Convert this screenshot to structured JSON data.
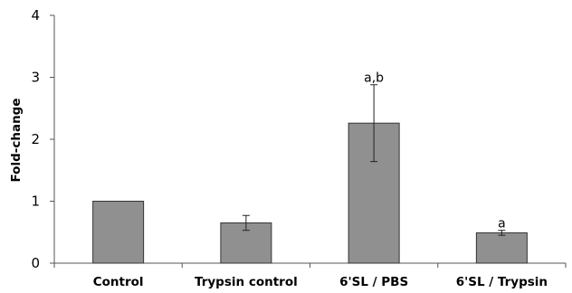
{
  "chart_data": {
    "type": "bar",
    "title": "",
    "xlabel": "",
    "ylabel": "Fold-change",
    "ylim": [
      0,
      4
    ],
    "yticks": [
      0,
      1,
      2,
      3,
      4
    ],
    "grid": false,
    "bar_color": "#909090",
    "categories": [
      "Control",
      "Trypsin control",
      "6'SL / PBS",
      "6'SL / Trypsin"
    ],
    "values": [
      1.0,
      0.65,
      2.26,
      0.49
    ],
    "errors": [
      null,
      0.12,
      0.62,
      0.04
    ],
    "annotations": [
      "",
      "",
      "a,b",
      "a"
    ]
  }
}
